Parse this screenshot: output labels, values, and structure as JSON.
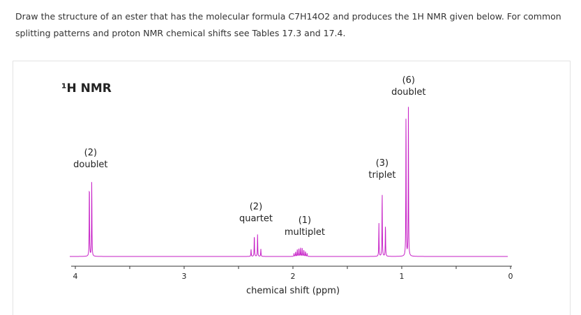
{
  "question": {
    "text": "Draw the structure of an ester that has the molecular formula C7H14O2 and produces the 1H NMR given below. For common splitting patterns and proton NMR chemical shifts see Tables 17.3 and 17.4."
  },
  "colors": {
    "spectrum": "#c61fc6",
    "axis": "#333333",
    "text": "#222222"
  },
  "chart_data": {
    "type": "line",
    "title": "¹H NMR",
    "xlabel": "chemical shift (ppm)",
    "ylabel": "",
    "xlim": [
      4,
      0
    ],
    "x_reversed": true,
    "ticks": [
      "4",
      "3",
      "2",
      "1",
      "0"
    ],
    "peaks": [
      {
        "shift": 3.86,
        "integration": "(2)",
        "multiplicity": "doublet",
        "relative_height": 0.51
      },
      {
        "shift": 2.34,
        "integration": "(2)",
        "multiplicity": "quartet",
        "relative_height": 0.15
      },
      {
        "shift": 1.93,
        "integration": "(1)",
        "multiplicity": "multiplet",
        "relative_height": 0.06
      },
      {
        "shift": 1.18,
        "integration": "(3)",
        "multiplicity": "triplet",
        "relative_height": 0.44
      },
      {
        "shift": 0.95,
        "integration": "(6)",
        "multiplicity": "doublet",
        "relative_height": 0.99
      }
    ]
  }
}
